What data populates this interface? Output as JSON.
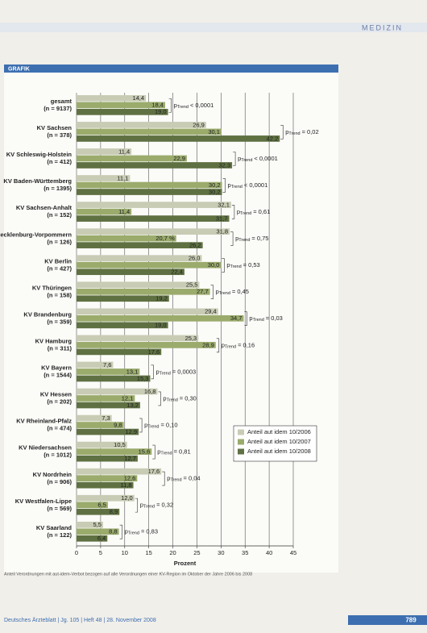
{
  "header": {
    "section": "MEDIZIN",
    "box_label": "GRAFIK"
  },
  "chart_data": {
    "type": "bar",
    "orientation": "horizontal",
    "categories": [
      "gesamt",
      "KV Sachsen",
      "KV Schleswig-Holstein",
      "KV Baden-Württemberg",
      "KV Sachsen-Anhalt",
      "KV Mecklenburg-Vorpommern",
      "KV Berlin",
      "KV Thüringen",
      "KV Brandenburg",
      "KV Hamburg",
      "KV Bayern",
      "KV Hessen",
      "KV Rheinland-Pfalz",
      "KV Niedersachsen",
      "KV Nordrhein",
      "KV Westfalen-Lippe",
      "KV Saarland"
    ],
    "category_n": [
      "(n = 9137)",
      "(n = 378)",
      "(n = 412)",
      "(n = 1395)",
      "(n = 152)",
      "(n = 126)",
      "(n = 427)",
      "(n = 158)",
      "(n = 359)",
      "(n = 311)",
      "(n = 1544)",
      "(n = 202)",
      "(n = 474)",
      "(n = 1012)",
      "(n = 906)",
      "(n = 569)",
      "(n = 122)"
    ],
    "series": [
      {
        "name": "Anteil aut idem 10/2006",
        "color": "#c9ccb4",
        "values": [
          14.4,
          26.9,
          11.4,
          11.1,
          32.1,
          31.8,
          26.0,
          25.5,
          29.4,
          25.3,
          7.6,
          16.8,
          7.3,
          10.5,
          17.6,
          12.0,
          5.5
        ],
        "value_labels": [
          "14,4",
          "26,9",
          "11,4",
          "11,1",
          "32,1",
          "31,8",
          "26,0",
          "25,5",
          "29,4",
          "25,3",
          "7,6",
          "16,8",
          "7,3",
          "10,5",
          "17,6",
          "12,0",
          "5,5"
        ]
      },
      {
        "name": "Anteil aut idem 10/2007",
        "color": "#9aab6c",
        "values": [
          18.4,
          30.1,
          22.9,
          30.2,
          11.4,
          20.7,
          30.0,
          27.7,
          34.7,
          28.9,
          13.1,
          12.1,
          9.8,
          15.6,
          12.6,
          6.5,
          8.8
        ],
        "value_labels": [
          "18,4",
          "30,1",
          "22,9",
          "30,2",
          "11,4",
          "20,7 %",
          "30,0",
          "27,7",
          "34,7",
          "28,9",
          "13,1",
          "12,1",
          "9,8",
          "15,6",
          "12,6",
          "6,5",
          "8,8"
        ]
      },
      {
        "name": "Anteil aut idem 10/2008",
        "color": "#5f7142",
        "values": [
          19.0,
          42.2,
          32.3,
          30.2,
          31.7,
          26.2,
          22.4,
          19.2,
          19.0,
          17.6,
          15.3,
          13.2,
          12.9,
          12.7,
          11.8,
          8.9,
          6.4
        ],
        "value_labels": [
          "19,0",
          "42,2",
          "32,3",
          "30,2",
          "31,7",
          "26,2",
          "22,4",
          "19,2",
          "19,0",
          "17,6",
          "15,3",
          "13,2",
          "12,9",
          "12,7",
          "11,8",
          "8,9",
          "6,4"
        ]
      }
    ],
    "p_symbol": "p",
    "p_subscript": "Trend",
    "p_values": [
      "< 0,0001",
      "= 0,02",
      "< 0,0001",
      "< 0,0001",
      "= 0,61",
      "= 0,75",
      "= 0,53",
      "= 0,45",
      "= 0,03",
      "= 0,16",
      "= 0,0003",
      "= 0,30",
      "= 0,10",
      "= 0,81",
      "= 0,04",
      "= 0,32",
      "= 0,83"
    ],
    "xlim": [
      0,
      45
    ],
    "xticks": [
      0,
      5,
      10,
      15,
      20,
      25,
      30,
      35,
      40,
      45
    ],
    "xlabel": "Prozent",
    "grid": true,
    "legend": "lower right"
  },
  "footnote": "Anteil Verordnungen mit aut-idem-Verbot bezogen auf alle Verordnungen einer KV-Region im Oktober der Jahre 2006 bis 2008",
  "footer": {
    "journal": "Deutsches Ärzteblatt | Jg. 105 | Heft 48 | 28. November 2008",
    "page": "789"
  }
}
